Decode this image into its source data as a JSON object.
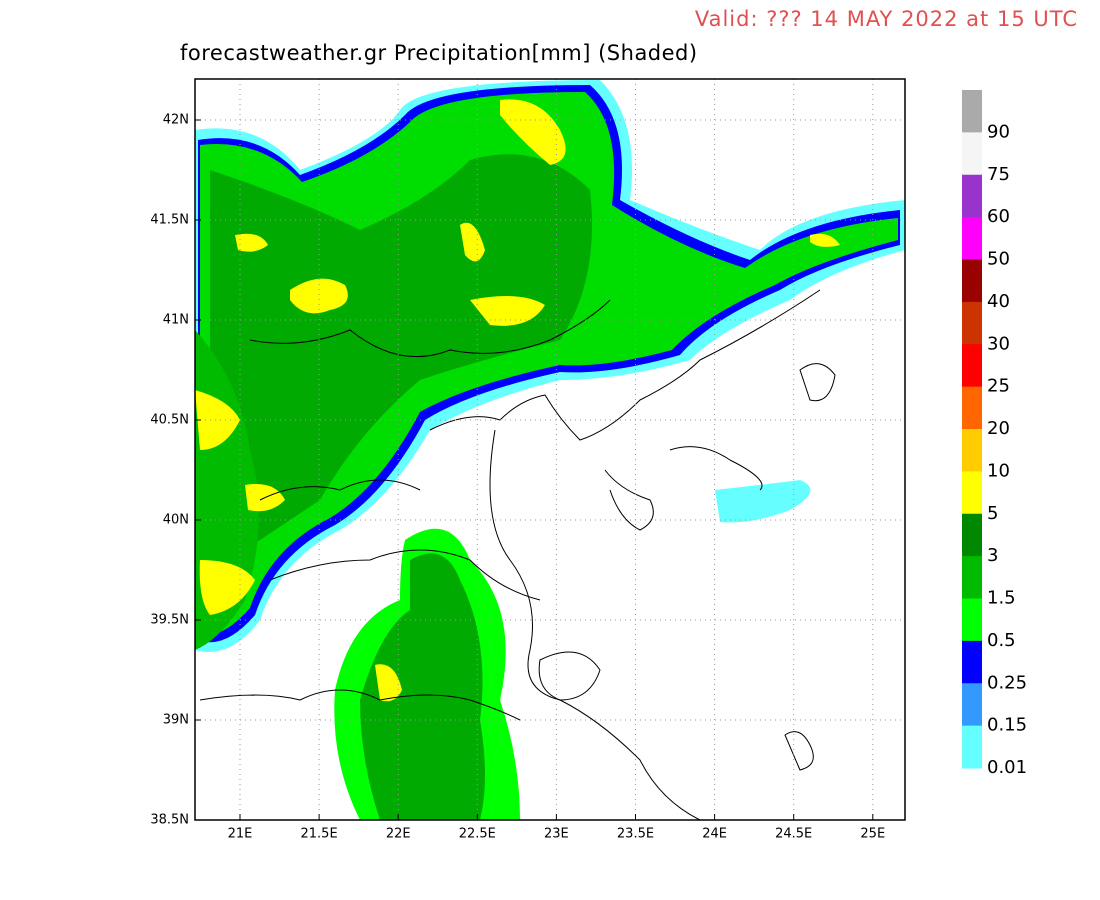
{
  "header": {
    "valid": "Valid: ??? 14 MAY 2022 at 15 UTC",
    "title": "forecastweather.gr Precipitation[mm] (Shaded)"
  },
  "map": {
    "lat_labels": [
      "42N",
      "41.5N",
      "41N",
      "40.5N",
      "40N",
      "39.5N",
      "39N",
      "38.5N"
    ],
    "lon_labels": [
      "21E",
      "21.5E",
      "22E",
      "22.5E",
      "23E",
      "23.5E",
      "24E",
      "24.5E",
      "25E"
    ]
  },
  "legend": {
    "levels": [
      {
        "label": "90",
        "color": "#aaaaaa"
      },
      {
        "label": "75",
        "color": "#f5f5f5"
      },
      {
        "label": "60",
        "color": "#9933cc"
      },
      {
        "label": "50",
        "color": "#ff00ff"
      },
      {
        "label": "40",
        "color": "#990000"
      },
      {
        "label": "30",
        "color": "#cc3300"
      },
      {
        "label": "25",
        "color": "#ff0000"
      },
      {
        "label": "20",
        "color": "#ff6600"
      },
      {
        "label": "10",
        "color": "#ffcc00"
      },
      {
        "label": "5",
        "color": "#ffff00"
      },
      {
        "label": "3",
        "color": "#008800"
      },
      {
        "label": "1.5",
        "color": "#00bb00"
      },
      {
        "label": "0.5",
        "color": "#00ff00"
      },
      {
        "label": "0.25",
        "color": "#0000ff"
      },
      {
        "label": "0.15",
        "color": "#3399ff"
      },
      {
        "label": "0.01",
        "color": "#66ffff"
      }
    ]
  }
}
